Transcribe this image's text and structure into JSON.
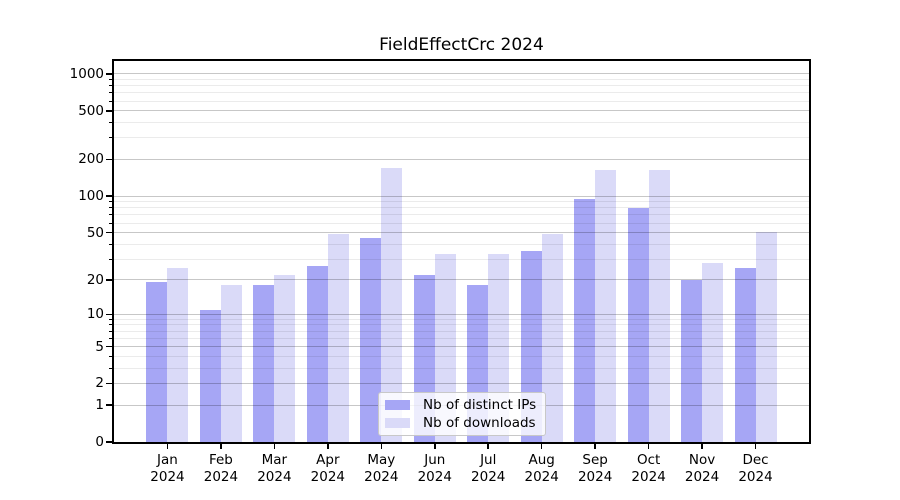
{
  "chart": {
    "title": "FieldEffectCrc 2024"
  },
  "chart_data": {
    "type": "bar",
    "title": "FieldEffectCrc 2024",
    "yscale": "log1p",
    "grid": "both",
    "categories": [
      "Jan 2024",
      "Feb 2024",
      "Mar 2024",
      "Apr 2024",
      "May 2024",
      "Jun 2024",
      "Jul 2024",
      "Aug 2024",
      "Sep 2024",
      "Oct 2024",
      "Nov 2024",
      "Dec 2024"
    ],
    "x_tick_month": [
      "Jan",
      "Feb",
      "Mar",
      "Apr",
      "May",
      "Jun",
      "Jul",
      "Aug",
      "Sep",
      "Oct",
      "Nov",
      "Dec"
    ],
    "x_tick_year": "2024",
    "series": [
      {
        "name": "Nb of distinct IPs",
        "color": "#a6a6f5",
        "values": [
          19,
          11,
          18,
          26,
          45,
          22,
          18,
          35,
          95,
          80,
          20,
          25
        ]
      },
      {
        "name": "Nb of downloads",
        "color": "#dadaf8",
        "values": [
          25,
          18,
          22,
          49,
          172,
          33,
          33,
          49,
          165,
          165,
          28,
          51
        ]
      }
    ],
    "y_major_ticks": [
      0,
      1,
      2,
      5,
      10,
      20,
      50,
      100,
      200,
      500,
      1000
    ],
    "y_minor_ticks": [
      3,
      4,
      6,
      7,
      8,
      9,
      30,
      40,
      60,
      70,
      80,
      90,
      300,
      400,
      600,
      700,
      800,
      900
    ],
    "ylim": [
      0,
      1276
    ],
    "xlabel": "",
    "ylabel": "",
    "legend_position": "lower center",
    "colors": {
      "frame": "#000000",
      "grid_major": "#c7c7c7",
      "grid_minor": "#ebebeb",
      "legend_border": "#c8c8c8",
      "background": "#ffffff"
    }
  }
}
